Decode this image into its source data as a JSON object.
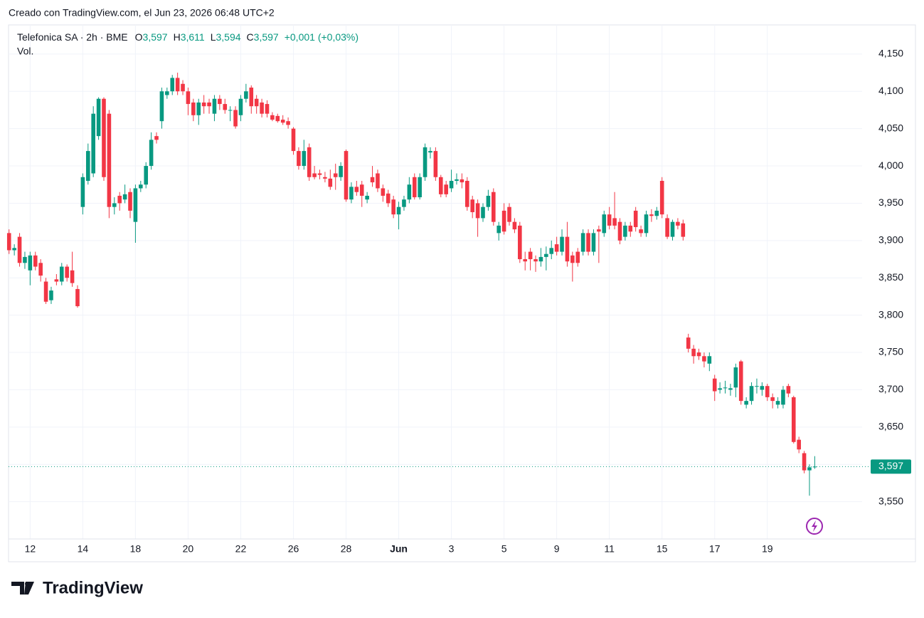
{
  "credit": "Creado con TradingView.com, el Jun 23, 2026 06:48 UTC+2",
  "header": {
    "symbol": "Telefonica SA · 2h · BME",
    "ohlc": [
      {
        "key": "O",
        "value": "3,597"
      },
      {
        "key": "H",
        "value": "3,611"
      },
      {
        "key": "L",
        "value": "3,594"
      },
      {
        "key": "C",
        "value": "3,597"
      }
    ],
    "change": "+0,001 (+0,03%)",
    "volume": "Vol."
  },
  "logo": "TradingView",
  "chart_data": {
    "type": "candlestick",
    "up_color": "#089981",
    "down_color": "#f23645",
    "ylim": [
      3.5,
      4.189
    ],
    "yticks": [
      {
        "value": 3.55,
        "label": "3,550"
      },
      {
        "value": 3.6,
        "label": "3,600"
      },
      {
        "value": 3.65,
        "label": "3,650"
      },
      {
        "value": 3.7,
        "label": "3,700"
      },
      {
        "value": 3.75,
        "label": "3,750"
      },
      {
        "value": 3.8,
        "label": "3,800"
      },
      {
        "value": 3.85,
        "label": "3,850"
      },
      {
        "value": 3.9,
        "label": "3,900"
      },
      {
        "value": 3.95,
        "label": "3,950"
      },
      {
        "value": 4.0,
        "label": "4,000"
      },
      {
        "value": 4.05,
        "label": "4,050"
      },
      {
        "value": 4.1,
        "label": "4,100"
      },
      {
        "value": 4.15,
        "label": "4,150"
      }
    ],
    "xlim": [
      -0.1,
      162
    ],
    "xticks": [
      {
        "value": 4,
        "label": "12"
      },
      {
        "value": 14,
        "label": "14"
      },
      {
        "value": 24,
        "label": "18"
      },
      {
        "value": 34,
        "label": "20"
      },
      {
        "value": 44,
        "label": "22"
      },
      {
        "value": 54,
        "label": "26"
      },
      {
        "value": 64,
        "label": "28"
      },
      {
        "value": 74,
        "label": "Jun"
      },
      {
        "value": 84,
        "label": "3"
      },
      {
        "value": 94,
        "label": "5"
      },
      {
        "value": 104,
        "label": "9"
      },
      {
        "value": 114,
        "label": "11"
      },
      {
        "value": 124,
        "label": "15"
      },
      {
        "value": 134,
        "label": "17"
      },
      {
        "value": 144,
        "label": "19"
      }
    ],
    "grid": true,
    "last_price": {
      "value": 3.597,
      "label": "3,597"
    },
    "candles": [
      [
        3.91,
        3.915,
        3.882,
        3.887
      ],
      [
        3.887,
        3.895,
        3.88,
        3.89
      ],
      [
        3.905,
        3.91,
        3.865,
        3.87
      ],
      [
        3.87,
        3.885,
        3.862,
        3.878
      ],
      [
        3.86,
        3.885,
        3.84,
        3.88
      ],
      [
        3.88,
        3.885,
        3.86,
        3.865
      ],
      [
        3.87,
        3.875,
        3.845,
        3.853
      ],
      [
        3.845,
        3.85,
        3.815,
        3.818
      ],
      [
        3.82,
        3.838,
        3.815,
        3.833
      ],
      [
        3.848,
        3.855,
        3.84,
        3.845
      ],
      [
        3.845,
        3.87,
        3.84,
        3.865
      ],
      [
        3.865,
        3.868,
        3.845,
        3.85
      ],
      [
        3.86,
        3.885,
        3.838,
        3.843
      ],
      [
        3.835,
        3.84,
        3.81,
        3.812
      ],
      [
        3.945,
        3.99,
        3.935,
        3.985
      ],
      [
        3.98,
        4.03,
        3.975,
        4.02
      ],
      [
        3.99,
        4.08,
        3.985,
        4.07
      ],
      [
        4.04,
        4.092,
        4.035,
        4.09
      ],
      [
        4.09,
        4.092,
        3.98,
        3.985
      ],
      [
        4.07,
        4.075,
        3.93,
        3.945
      ],
      [
        3.945,
        3.958,
        3.935,
        3.95
      ],
      [
        3.96,
        3.965,
        3.94,
        3.95
      ],
      [
        3.955,
        3.975,
        3.95,
        3.962
      ],
      [
        3.965,
        3.97,
        3.93,
        3.94
      ],
      [
        3.925,
        3.975,
        3.897,
        3.97
      ],
      [
        3.97,
        3.98,
        3.965,
        3.975
      ],
      [
        3.975,
        4.005,
        3.97,
        4.0
      ],
      [
        4.0,
        4.045,
        3.995,
        4.035
      ],
      [
        4.04,
        4.045,
        4.03,
        4.035
      ],
      [
        4.06,
        4.105,
        4.05,
        4.1
      ],
      [
        4.095,
        4.105,
        4.09,
        4.1
      ],
      [
        4.1,
        4.122,
        4.095,
        4.118
      ],
      [
        4.118,
        4.125,
        4.095,
        4.1
      ],
      [
        4.11,
        4.115,
        4.095,
        4.1
      ],
      [
        4.1,
        4.105,
        4.068,
        4.083
      ],
      [
        4.085,
        4.09,
        4.06,
        4.068
      ],
      [
        4.068,
        4.09,
        4.055,
        4.085
      ],
      [
        4.085,
        4.095,
        4.07,
        4.08
      ],
      [
        4.085,
        4.09,
        4.07,
        4.08
      ],
      [
        4.07,
        4.095,
        4.06,
        4.09
      ],
      [
        4.09,
        4.095,
        4.075,
        4.083
      ],
      [
        4.083,
        4.09,
        4.07,
        4.075
      ],
      [
        4.075,
        4.08,
        4.06,
        4.075
      ],
      [
        4.075,
        4.08,
        4.05,
        4.053
      ],
      [
        4.068,
        4.095,
        4.06,
        4.09
      ],
      [
        4.09,
        4.11,
        4.085,
        4.1
      ],
      [
        4.105,
        4.108,
        4.07,
        4.08
      ],
      [
        4.09,
        4.095,
        4.07,
        4.08
      ],
      [
        4.085,
        4.09,
        4.065,
        4.07
      ],
      [
        4.083,
        4.088,
        4.065,
        4.07
      ],
      [
        4.068,
        4.072,
        4.06,
        4.062
      ],
      [
        4.067,
        4.07,
        4.058,
        4.06
      ],
      [
        4.062,
        4.068,
        4.055,
        4.058
      ],
      [
        4.06,
        4.065,
        4.05,
        4.055
      ],
      [
        4.05,
        4.052,
        4.015,
        4.02
      ],
      [
        4.02,
        4.025,
        3.995,
        4.0
      ],
      [
        4.0,
        4.035,
        3.995,
        4.02
      ],
      [
        4.025,
        4.03,
        3.98,
        3.985
      ],
      [
        3.99,
        4.0,
        3.982,
        3.985
      ],
      [
        3.99,
        3.995,
        3.982,
        3.988
      ],
      [
        3.985,
        3.992,
        3.978,
        3.983
      ],
      [
        3.983,
        3.995,
        3.968,
        3.972
      ],
      [
        3.99,
        4.003,
        3.968,
        3.985
      ],
      [
        3.985,
        4.005,
        3.98,
        4.0
      ],
      [
        4.02,
        4.022,
        3.952,
        3.955
      ],
      [
        3.955,
        3.978,
        3.95,
        3.972
      ],
      [
        3.972,
        3.98,
        3.96,
        3.965
      ],
      [
        3.975,
        3.98,
        3.945,
        3.96
      ],
      [
        3.955,
        3.965,
        3.95,
        3.96
      ],
      [
        3.985,
        4.0,
        3.972,
        3.978
      ],
      [
        3.99,
        3.995,
        3.965,
        3.97
      ],
      [
        3.97,
        3.975,
        3.952,
        3.96
      ],
      [
        3.963,
        3.968,
        3.945,
        3.95
      ],
      [
        3.955,
        3.96,
        3.93,
        3.935
      ],
      [
        3.935,
        3.952,
        3.915,
        3.945
      ],
      [
        3.945,
        3.96,
        3.94,
        3.955
      ],
      [
        3.955,
        3.985,
        3.95,
        3.975
      ],
      [
        3.985,
        3.99,
        3.955,
        3.958
      ],
      [
        3.958,
        3.99,
        3.955,
        3.985
      ],
      [
        3.985,
        4.03,
        3.98,
        4.025
      ],
      [
        4.018,
        4.025,
        4.01,
        4.02
      ],
      [
        4.02,
        4.025,
        3.98,
        3.985
      ],
      [
        3.985,
        3.988,
        3.958,
        3.962
      ],
      [
        3.975,
        3.98,
        3.958,
        3.962
      ],
      [
        3.97,
        3.995,
        3.965,
        3.98
      ],
      [
        3.98,
        3.99,
        3.975,
        3.982
      ],
      [
        3.982,
        3.99,
        3.97,
        3.978
      ],
      [
        3.98,
        3.985,
        3.94,
        3.945
      ],
      [
        3.955,
        3.96,
        3.93,
        3.938
      ],
      [
        3.95,
        3.955,
        3.905,
        3.93
      ],
      [
        3.93,
        3.95,
        3.925,
        3.945
      ],
      [
        3.945,
        3.968,
        3.94,
        3.96
      ],
      [
        3.965,
        3.97,
        3.92,
        3.925
      ],
      [
        3.91,
        3.925,
        3.9,
        3.92
      ],
      [
        3.94,
        3.95,
        3.908,
        3.912
      ],
      [
        3.945,
        3.95,
        3.92,
        3.925
      ],
      [
        3.925,
        3.93,
        3.91,
        3.915
      ],
      [
        3.92,
        3.925,
        3.87,
        3.875
      ],
      [
        3.875,
        3.885,
        3.86,
        3.872
      ],
      [
        3.885,
        3.89,
        3.86,
        3.875
      ],
      [
        3.875,
        3.88,
        3.858,
        3.872
      ],
      [
        3.872,
        3.89,
        3.865,
        3.878
      ],
      [
        3.878,
        3.892,
        3.86,
        3.882
      ],
      [
        3.882,
        3.9,
        3.875,
        3.89
      ],
      [
        3.895,
        3.905,
        3.88,
        3.885
      ],
      [
        3.885,
        3.915,
        3.88,
        3.905
      ],
      [
        3.905,
        3.925,
        3.865,
        3.872
      ],
      [
        3.88,
        3.885,
        3.845,
        3.87
      ],
      [
        3.885,
        3.89,
        3.865,
        3.87
      ],
      [
        3.885,
        3.915,
        3.88,
        3.91
      ],
      [
        3.91,
        3.915,
        3.88,
        3.885
      ],
      [
        3.885,
        3.915,
        3.88,
        3.91
      ],
      [
        3.915,
        3.92,
        3.87,
        3.912
      ],
      [
        3.91,
        3.94,
        3.905,
        3.935
      ],
      [
        3.935,
        3.945,
        3.915,
        3.92
      ],
      [
        3.93,
        3.965,
        3.915,
        3.92
      ],
      [
        3.925,
        3.93,
        3.895,
        3.9
      ],
      [
        3.905,
        3.925,
        3.9,
        3.92
      ],
      [
        3.92,
        3.925,
        3.905,
        3.912
      ],
      [
        3.94,
        3.945,
        3.912,
        3.918
      ],
      [
        3.915,
        3.92,
        3.905,
        3.91
      ],
      [
        3.91,
        3.94,
        3.905,
        3.935
      ],
      [
        3.935,
        3.942,
        3.925,
        3.933
      ],
      [
        3.933,
        3.945,
        3.928,
        3.94
      ],
      [
        3.98,
        3.985,
        3.93,
        3.935
      ],
      [
        3.93,
        3.935,
        3.902,
        3.905
      ],
      [
        3.905,
        3.928,
        3.9,
        3.925
      ],
      [
        3.925,
        3.93,
        3.915,
        3.92
      ],
      [
        3.923,
        3.928,
        3.9,
        3.905
      ],
      [
        3.77,
        3.775,
        3.75,
        3.755
      ],
      [
        3.755,
        3.76,
        3.735,
        3.745
      ],
      [
        3.75,
        3.755,
        3.74,
        3.745
      ],
      [
        3.745,
        3.75,
        3.73,
        3.738
      ],
      [
        3.735,
        3.75,
        3.725,
        3.745
      ],
      [
        3.715,
        3.72,
        3.685,
        3.698
      ],
      [
        3.7,
        3.71,
        3.695,
        3.702
      ],
      [
        3.702,
        3.712,
        3.695,
        3.703
      ],
      [
        3.7,
        3.708,
        3.692,
        3.702
      ],
      [
        3.703,
        3.735,
        3.69,
        3.73
      ],
      [
        3.738,
        3.74,
        3.68,
        3.685
      ],
      [
        3.68,
        3.69,
        3.675,
        3.685
      ],
      [
        3.685,
        3.71,
        3.68,
        3.705
      ],
      [
        3.705,
        3.715,
        3.695,
        3.705
      ],
      [
        3.7,
        3.71,
        3.692,
        3.705
      ],
      [
        3.705,
        3.708,
        3.685,
        3.69
      ],
      [
        3.69,
        3.695,
        3.675,
        3.685
      ],
      [
        3.68,
        3.69,
        3.675,
        3.685
      ],
      [
        3.68,
        3.705,
        3.675,
        3.7
      ],
      [
        3.705,
        3.708,
        3.69,
        3.695
      ],
      [
        3.69,
        3.692,
        3.628,
        3.63
      ],
      [
        3.633,
        3.637,
        3.615,
        3.62
      ],
      [
        3.615,
        3.618,
        3.588,
        3.592
      ],
      [
        3.592,
        3.6,
        3.558,
        3.596
      ],
      [
        3.597,
        3.611,
        3.594,
        3.597
      ]
    ]
  }
}
